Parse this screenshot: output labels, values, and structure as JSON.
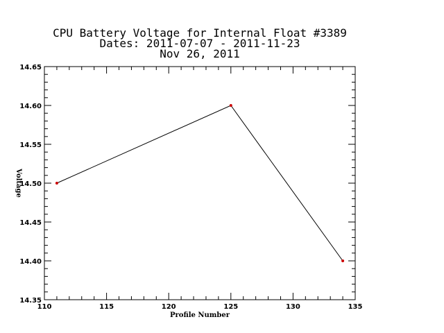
{
  "chart_data": {
    "type": "line",
    "title_lines": [
      "CPU Battery Voltage for Internal Float #3389",
      "Dates:  2011-07-07 -  2011-11-23",
      "Nov 26, 2011"
    ],
    "xlabel": "Profile Number",
    "ylabel": "Voltage",
    "xlim": [
      110,
      135
    ],
    "ylim": [
      14.35,
      14.65
    ],
    "xticks": [
      110,
      115,
      120,
      125,
      130,
      135
    ],
    "yticks": [
      14.35,
      14.4,
      14.45,
      14.5,
      14.55,
      14.6,
      14.65
    ],
    "x_tick_labels": [
      "110",
      "115",
      "120",
      "125",
      "130",
      "135"
    ],
    "y_tick_labels": [
      "14.35",
      "14.40",
      "14.45",
      "14.50",
      "14.55",
      "14.60",
      "14.65"
    ],
    "series": [
      {
        "x": [
          111,
          125,
          134
        ],
        "y": [
          14.5,
          14.6,
          14.4
        ]
      }
    ],
    "line_color": "#000000",
    "marker_color": "#cc0000",
    "grid": false
  }
}
